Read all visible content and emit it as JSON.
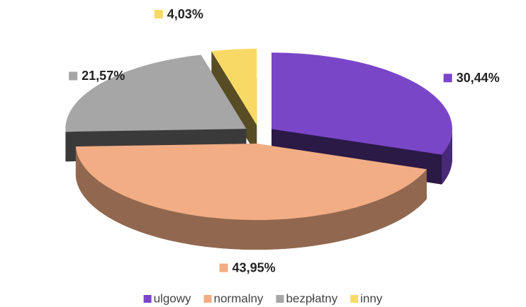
{
  "chart_data": {
    "type": "pie",
    "categories": [
      "ulgowy",
      "normalny",
      "bezpłatny",
      "inny"
    ],
    "values": [
      30.44,
      43.95,
      21.57,
      4.03
    ],
    "value_labels": [
      "30,44%",
      "43,95%",
      "21,57%",
      "4,03%"
    ],
    "colors": [
      "#7a46c8",
      "#f2ad84",
      "#a6a6a6",
      "#f9d966"
    ],
    "legend": "bottom"
  }
}
